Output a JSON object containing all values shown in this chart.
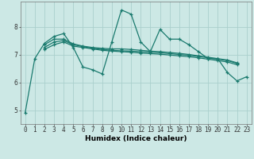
{
  "xlabel": "Humidex (Indice chaleur)",
  "bg_color": "#cce8e5",
  "grid_color": "#aacfcc",
  "line_color": "#1a7a6e",
  "x_values": [
    0,
    1,
    2,
    3,
    4,
    5,
    6,
    7,
    8,
    9,
    10,
    11,
    12,
    13,
    14,
    15,
    16,
    17,
    18,
    19,
    20,
    21,
    22,
    23
  ],
  "series": [
    [
      4.9,
      6.85,
      7.4,
      7.65,
      7.75,
      7.25,
      6.55,
      6.45,
      6.3,
      7.45,
      8.6,
      8.45,
      7.45,
      7.1,
      7.9,
      7.55,
      7.55,
      7.35,
      7.1,
      6.85,
      6.85,
      6.35,
      6.05,
      6.2
    ],
    [
      null,
      null,
      7.35,
      7.55,
      7.55,
      7.38,
      7.3,
      7.25,
      7.22,
      7.2,
      7.2,
      7.18,
      7.15,
      7.12,
      7.1,
      7.07,
      7.04,
      7.0,
      6.95,
      6.9,
      6.85,
      6.8,
      6.7,
      null
    ],
    [
      null,
      null,
      7.25,
      7.45,
      7.5,
      7.35,
      7.28,
      7.22,
      7.18,
      7.15,
      7.13,
      7.12,
      7.1,
      7.08,
      7.06,
      7.03,
      7.0,
      6.97,
      6.93,
      6.88,
      6.83,
      6.78,
      6.68,
      null
    ],
    [
      null,
      null,
      7.18,
      7.35,
      7.45,
      7.3,
      7.25,
      7.2,
      7.15,
      7.12,
      7.1,
      7.08,
      7.05,
      7.03,
      7.01,
      6.98,
      6.95,
      6.92,
      6.88,
      6.83,
      6.78,
      6.73,
      6.63,
      null
    ]
  ],
  "ylim": [
    4.5,
    8.9
  ],
  "yticks": [
    5,
    6,
    7,
    8
  ],
  "xticks": [
    0,
    1,
    2,
    3,
    4,
    5,
    6,
    7,
    8,
    9,
    10,
    11,
    12,
    13,
    14,
    15,
    16,
    17,
    18,
    19,
    20,
    21,
    22,
    23
  ],
  "marker": "+",
  "markersize": 3.5,
  "linewidth": 0.9,
  "tick_fontsize": 5.5,
  "xlabel_fontsize": 6.5
}
